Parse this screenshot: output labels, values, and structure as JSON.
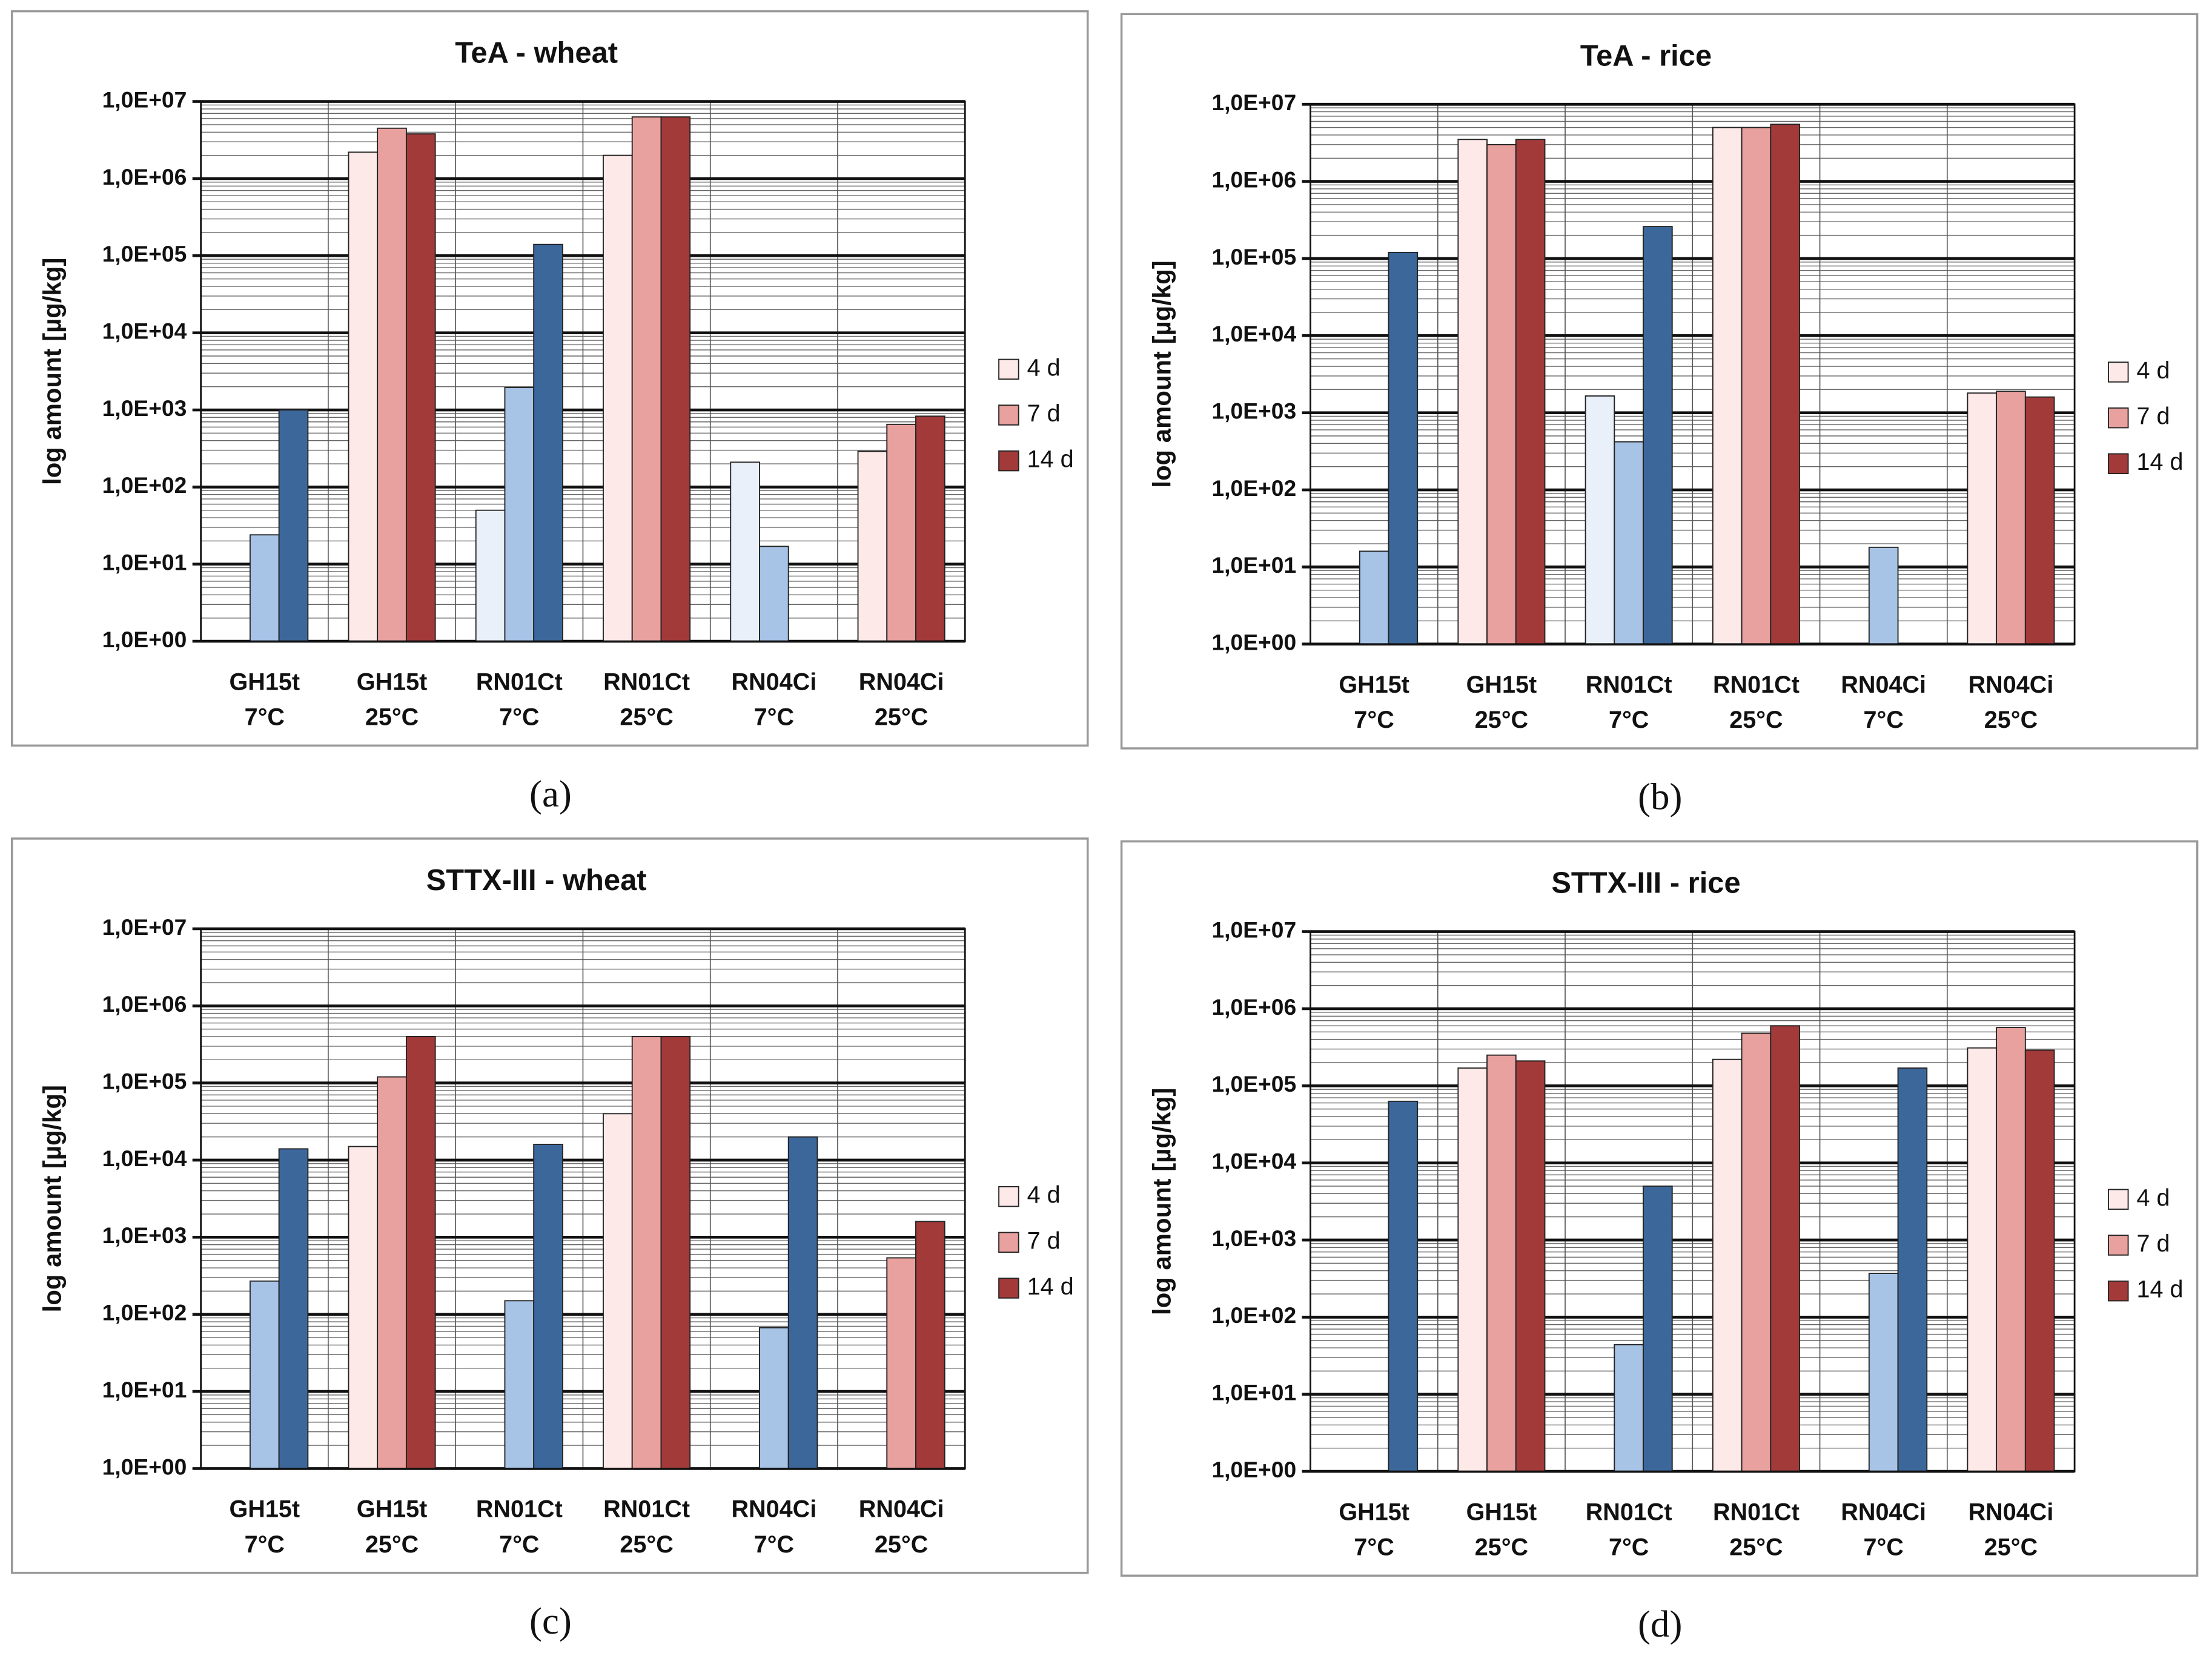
{
  "chart_data": [
    {
      "type": "bar",
      "title": "TeA - wheat",
      "caption": "(a)",
      "y_label": "log amount [µg/kg]",
      "log_scale": true,
      "grid": true,
      "legend": "right",
      "categories": [
        [
          "GH15t",
          "7°C"
        ],
        [
          "GH15t",
          "25°C"
        ],
        [
          "RN01Ct",
          "7°C"
        ],
        [
          "RN01Ct",
          "25°C"
        ],
        [
          "RN04Ci",
          "7°C"
        ],
        [
          "RN04Ci",
          "25°C"
        ]
      ],
      "ylim": [
        1,
        10000000
      ],
      "yticks": [
        {
          "value": 1,
          "label": "1,0E+00"
        },
        {
          "value": 10,
          "label": "1,0E+01"
        },
        {
          "value": 100,
          "label": "1,0E+02"
        },
        {
          "value": 1000,
          "label": "1,0E+03"
        },
        {
          "value": 10000,
          "label": "1,0E+04"
        },
        {
          "value": 100000,
          "label": "1,0E+05"
        },
        {
          "value": 1000000,
          "label": "1,0E+06"
        },
        {
          "value": 10000000,
          "label": "1,0E+07"
        }
      ],
      "series": [
        {
          "name": "4 d",
          "color": "#fde9e8",
          "colors": [
            "#e9f0fa",
            "#fde9e8",
            "#e9f0fa",
            "#fde9e8",
            "#e9f0fa",
            "#fde9e8"
          ],
          "values": [
            null,
            2200000,
            50,
            2000000,
            210,
            290
          ]
        },
        {
          "name": "7 d",
          "color": "#e8a19e",
          "colors": [
            "#a7c3e6",
            "#e8a19e",
            "#a7c3e6",
            "#e8a19e",
            "#a7c3e6",
            "#e8a19e"
          ],
          "values": [
            24,
            4500000,
            1950,
            6300000,
            17,
            650
          ]
        },
        {
          "name": "14 d",
          "color": "#a33a3a",
          "colors": [
            "#3c679b",
            "#a33a3a",
            "#3c679b",
            "#a33a3a",
            "#3c679b",
            "#a33a3a"
          ],
          "values": [
            1000,
            3800000,
            140000,
            6300000,
            null,
            830
          ]
        }
      ]
    },
    {
      "type": "bar",
      "title": "TeA - rice",
      "caption": "(b)",
      "y_label": "log amount [µg/kg]",
      "log_scale": true,
      "grid": true,
      "legend": "right",
      "categories": [
        [
          "GH15t",
          "7°C"
        ],
        [
          "GH15t",
          "25°C"
        ],
        [
          "RN01Ct",
          "7°C"
        ],
        [
          "RN01Ct",
          "25°C"
        ],
        [
          "RN04Ci",
          "7°C"
        ],
        [
          "RN04Ci",
          "25°C"
        ]
      ],
      "ylim": [
        1,
        10000000
      ],
      "yticks": [
        {
          "value": 1,
          "label": "1,0E+00"
        },
        {
          "value": 10,
          "label": "1,0E+01"
        },
        {
          "value": 100,
          "label": "1,0E+02"
        },
        {
          "value": 1000,
          "label": "1,0E+03"
        },
        {
          "value": 10000,
          "label": "1,0E+04"
        },
        {
          "value": 100000,
          "label": "1,0E+05"
        },
        {
          "value": 1000000,
          "label": "1,0E+06"
        },
        {
          "value": 10000000,
          "label": "1,0E+07"
        }
      ],
      "series": [
        {
          "name": "4 d",
          "color": "#fde9e8",
          "colors": [
            "#e9f0fa",
            "#fde9e8",
            "#e9f0fa",
            "#fde9e8",
            "#e9f0fa",
            "#fde9e8"
          ],
          "values": [
            null,
            3500000,
            1650,
            5000000,
            null,
            1800
          ]
        },
        {
          "name": "7 d",
          "color": "#e8a19e",
          "colors": [
            "#a7c3e6",
            "#e8a19e",
            "#a7c3e6",
            "#e8a19e",
            "#a7c3e6",
            "#e8a19e"
          ],
          "values": [
            16,
            3000000,
            420,
            5000000,
            18,
            1900
          ]
        },
        {
          "name": "14 d",
          "color": "#a33a3a",
          "colors": [
            "#3c679b",
            "#a33a3a",
            "#3c679b",
            "#a33a3a",
            "#3c679b",
            "#a33a3a"
          ],
          "values": [
            120000,
            3500000,
            260000,
            5500000,
            null,
            1600
          ]
        }
      ]
    },
    {
      "type": "bar",
      "title": "STTX-III - wheat",
      "caption": "(c)",
      "y_label": "log amount [µg/kg]",
      "log_scale": true,
      "grid": true,
      "legend": "right",
      "categories": [
        [
          "GH15t",
          "7°C"
        ],
        [
          "GH15t",
          "25°C"
        ],
        [
          "RN01Ct",
          "7°C"
        ],
        [
          "RN01Ct",
          "25°C"
        ],
        [
          "RN04Ci",
          "7°C"
        ],
        [
          "RN04Ci",
          "25°C"
        ]
      ],
      "ylim": [
        1,
        10000000
      ],
      "yticks": [
        {
          "value": 1,
          "label": "1,0E+00"
        },
        {
          "value": 10,
          "label": "1,0E+01"
        },
        {
          "value": 100,
          "label": "1,0E+02"
        },
        {
          "value": 1000,
          "label": "1,0E+03"
        },
        {
          "value": 10000,
          "label": "1,0E+04"
        },
        {
          "value": 100000,
          "label": "1,0E+05"
        },
        {
          "value": 1000000,
          "label": "1,0E+06"
        },
        {
          "value": 10000000,
          "label": "1,0E+07"
        }
      ],
      "series": [
        {
          "name": "4 d",
          "color": "#fde9e8",
          "colors": [
            "#e9f0fa",
            "#fde9e8",
            "#e9f0fa",
            "#fde9e8",
            "#e9f0fa",
            "#fde9e8"
          ],
          "values": [
            null,
            15000,
            null,
            40000,
            null,
            null
          ]
        },
        {
          "name": "7 d",
          "color": "#e8a19e",
          "colors": [
            "#a7c3e6",
            "#e8a19e",
            "#a7c3e6",
            "#e8a19e",
            "#a7c3e6",
            "#e8a19e"
          ],
          "values": [
            270,
            120000,
            150,
            400000,
            67,
            540
          ]
        },
        {
          "name": "14 d",
          "color": "#a33a3a",
          "colors": [
            "#3c679b",
            "#a33a3a",
            "#3c679b",
            "#a33a3a",
            "#3c679b",
            "#a33a3a"
          ],
          "values": [
            14000,
            400000,
            16000,
            400000,
            20000,
            1600
          ]
        }
      ]
    },
    {
      "type": "bar",
      "title": "STTX-III - rice",
      "caption": "(d)",
      "y_label": "log amount [µg/kg]",
      "log_scale": true,
      "grid": true,
      "legend": "right",
      "categories": [
        [
          "GH15t",
          "7°C"
        ],
        [
          "GH15t",
          "25°C"
        ],
        [
          "RN01Ct",
          "7°C"
        ],
        [
          "RN01Ct",
          "25°C"
        ],
        [
          "RN04Ci",
          "7°C"
        ],
        [
          "RN04Ci",
          "25°C"
        ]
      ],
      "ylim": [
        1,
        10000000
      ],
      "yticks": [
        {
          "value": 1,
          "label": "1,0E+00"
        },
        {
          "value": 10,
          "label": "1,0E+01"
        },
        {
          "value": 100,
          "label": "1,0E+02"
        },
        {
          "value": 1000,
          "label": "1,0E+03"
        },
        {
          "value": 10000,
          "label": "1,0E+04"
        },
        {
          "value": 100000,
          "label": "1,0E+05"
        },
        {
          "value": 1000000,
          "label": "1,0E+06"
        },
        {
          "value": 10000000,
          "label": "1,0E+07"
        }
      ],
      "series": [
        {
          "name": "4 d",
          "color": "#fde9e8",
          "colors": [
            "#e9f0fa",
            "#fde9e8",
            "#e9f0fa",
            "#fde9e8",
            "#e9f0fa",
            "#fde9e8"
          ],
          "values": [
            null,
            170000,
            null,
            220000,
            null,
            310000
          ]
        },
        {
          "name": "7 d",
          "color": "#e8a19e",
          "colors": [
            "#a7c3e6",
            "#e8a19e",
            "#a7c3e6",
            "#e8a19e",
            "#a7c3e6",
            "#e8a19e"
          ],
          "values": [
            null,
            250000,
            44,
            480000,
            370,
            570000
          ]
        },
        {
          "name": "14 d",
          "color": "#a33a3a",
          "colors": [
            "#3c679b",
            "#a33a3a",
            "#3c679b",
            "#a33a3a",
            "#3c679b",
            "#a33a3a"
          ],
          "values": [
            63000,
            210000,
            5000,
            600000,
            170000,
            290000
          ]
        }
      ]
    }
  ]
}
